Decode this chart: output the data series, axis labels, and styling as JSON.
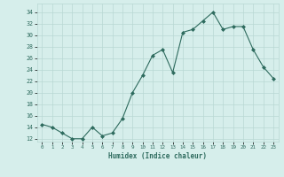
{
  "x": [
    0,
    1,
    2,
    3,
    4,
    5,
    6,
    7,
    8,
    9,
    10,
    11,
    12,
    13,
    14,
    15,
    16,
    17,
    18,
    19,
    20,
    21,
    22,
    23
  ],
  "y": [
    14.5,
    14.0,
    13.0,
    12.0,
    12.0,
    14.0,
    12.5,
    13.0,
    15.5,
    20.0,
    23.0,
    26.5,
    27.5,
    23.5,
    30.5,
    31.0,
    32.5,
    34.0,
    31.0,
    31.5,
    31.5,
    27.5,
    24.5,
    22.5
  ],
  "line_color": "#2e6b5e",
  "marker": "D",
  "marker_size": 2,
  "background_color": "#d6eeeb",
  "grid_color": "#b8d8d4",
  "xlabel": "Humidex (Indice chaleur)",
  "ylabel_ticks": [
    12,
    14,
    16,
    18,
    20,
    22,
    24,
    26,
    28,
    30,
    32,
    34
  ],
  "xlim": [
    -0.5,
    23.5
  ],
  "ylim": [
    11.5,
    35.5
  ],
  "xticks": [
    0,
    1,
    2,
    3,
    4,
    5,
    6,
    7,
    8,
    9,
    10,
    11,
    12,
    13,
    14,
    15,
    16,
    17,
    18,
    19,
    20,
    21,
    22,
    23
  ]
}
